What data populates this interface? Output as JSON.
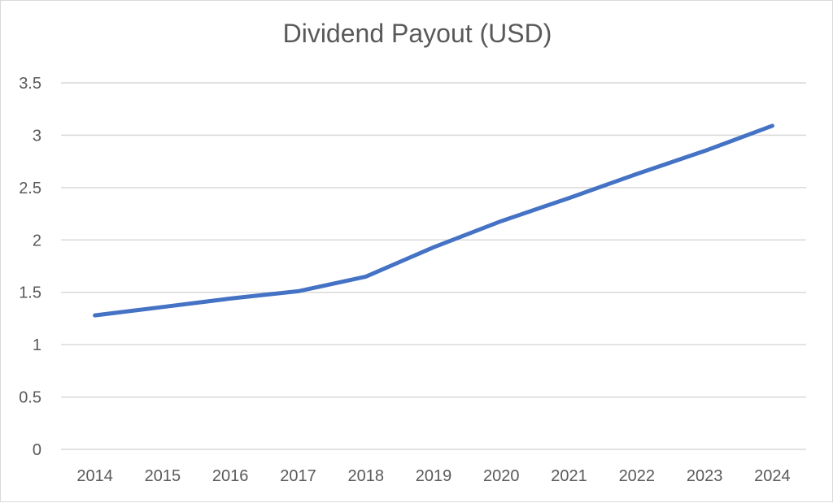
{
  "chart_data": {
    "type": "line",
    "title": "Dividend Payout (USD)",
    "x": [
      "2014",
      "2015",
      "2016",
      "2017",
      "2018",
      "2019",
      "2020",
      "2021",
      "2022",
      "2023",
      "2024"
    ],
    "series": [
      {
        "values": [
          1.28,
          1.36,
          1.44,
          1.51,
          1.65,
          1.93,
          2.18,
          2.4,
          2.63,
          2.85,
          3.09
        ],
        "color": "#4472C4"
      }
    ],
    "ylim": [
      0,
      3.5
    ],
    "yticks": [
      "0",
      "0.5",
      "1",
      "1.5",
      "2",
      "2.5",
      "3",
      "3.5"
    ],
    "grid": true,
    "gridColor": "#d9d9d9",
    "legend": "none"
  }
}
